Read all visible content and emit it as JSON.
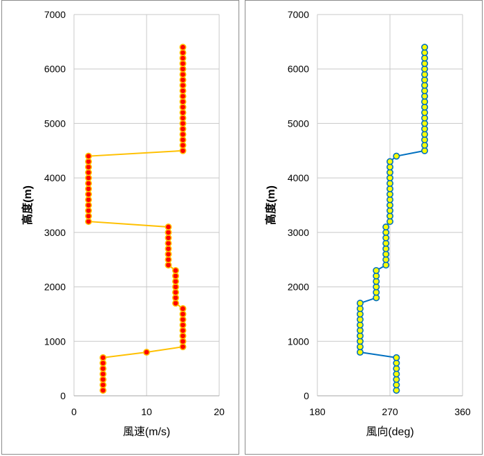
{
  "chart_data": [
    {
      "type": "line",
      "xlabel": "風速(m/s)",
      "ylabel": "高度(m)",
      "xlim": [
        0,
        20
      ],
      "ylim": [
        0,
        7000
      ],
      "xticks": [
        0,
        10,
        20
      ],
      "yticks": [
        0,
        1000,
        2000,
        3000,
        4000,
        5000,
        6000,
        7000
      ],
      "grid": true,
      "line_color": "#FFC000",
      "marker_fill": "#FF0000",
      "marker_edge": "#FFC000",
      "points": [
        {
          "x": 4,
          "y": 100
        },
        {
          "x": 4,
          "y": 200
        },
        {
          "x": 4,
          "y": 300
        },
        {
          "x": 4,
          "y": 400
        },
        {
          "x": 4,
          "y": 500
        },
        {
          "x": 4,
          "y": 600
        },
        {
          "x": 4,
          "y": 700
        },
        {
          "x": 10,
          "y": 800
        },
        {
          "x": 15,
          "y": 900
        },
        {
          "x": 15,
          "y": 1000
        },
        {
          "x": 15,
          "y": 1100
        },
        {
          "x": 15,
          "y": 1200
        },
        {
          "x": 15,
          "y": 1300
        },
        {
          "x": 15,
          "y": 1400
        },
        {
          "x": 15,
          "y": 1500
        },
        {
          "x": 15,
          "y": 1600
        },
        {
          "x": 14,
          "y": 1700
        },
        {
          "x": 14,
          "y": 1800
        },
        {
          "x": 14,
          "y": 1900
        },
        {
          "x": 14,
          "y": 2000
        },
        {
          "x": 14,
          "y": 2100
        },
        {
          "x": 14,
          "y": 2200
        },
        {
          "x": 14,
          "y": 2300
        },
        {
          "x": 13,
          "y": 2400
        },
        {
          "x": 13,
          "y": 2500
        },
        {
          "x": 13,
          "y": 2600
        },
        {
          "x": 13,
          "y": 2700
        },
        {
          "x": 13,
          "y": 2800
        },
        {
          "x": 13,
          "y": 2900
        },
        {
          "x": 13,
          "y": 3000
        },
        {
          "x": 13,
          "y": 3100
        },
        {
          "x": 2,
          "y": 3200
        },
        {
          "x": 2,
          "y": 3300
        },
        {
          "x": 2,
          "y": 3400
        },
        {
          "x": 2,
          "y": 3500
        },
        {
          "x": 2,
          "y": 3600
        },
        {
          "x": 2,
          "y": 3700
        },
        {
          "x": 2,
          "y": 3800
        },
        {
          "x": 2,
          "y": 3900
        },
        {
          "x": 2,
          "y": 4000
        },
        {
          "x": 2,
          "y": 4100
        },
        {
          "x": 2,
          "y": 4200
        },
        {
          "x": 2,
          "y": 4300
        },
        {
          "x": 2,
          "y": 4400
        },
        {
          "x": 15,
          "y": 4500
        },
        {
          "x": 15,
          "y": 4600
        },
        {
          "x": 15,
          "y": 4700
        },
        {
          "x": 15,
          "y": 4800
        },
        {
          "x": 15,
          "y": 4900
        },
        {
          "x": 15,
          "y": 5000
        },
        {
          "x": 15,
          "y": 5100
        },
        {
          "x": 15,
          "y": 5200
        },
        {
          "x": 15,
          "y": 5300
        },
        {
          "x": 15,
          "y": 5400
        },
        {
          "x": 15,
          "y": 5500
        },
        {
          "x": 15,
          "y": 5600
        },
        {
          "x": 15,
          "y": 5700
        },
        {
          "x": 15,
          "y": 5800
        },
        {
          "x": 15,
          "y": 5900
        },
        {
          "x": 15,
          "y": 6000
        },
        {
          "x": 15,
          "y": 6100
        },
        {
          "x": 15,
          "y": 6200
        },
        {
          "x": 15,
          "y": 6300
        },
        {
          "x": 15,
          "y": 6400
        }
      ]
    },
    {
      "type": "line",
      "xlabel": "風向(deg)",
      "ylabel": "高度(m)",
      "xlim": [
        180,
        360
      ],
      "ylim": [
        0,
        7000
      ],
      "xticks": [
        180,
        270,
        360
      ],
      "yticks": [
        0,
        1000,
        2000,
        3000,
        4000,
        5000,
        6000,
        7000
      ],
      "grid": true,
      "line_color": "#0070C0",
      "marker_fill": "#FFFF00",
      "marker_edge": "#0070C0",
      "points": [
        {
          "x": 278,
          "y": 100
        },
        {
          "x": 278,
          "y": 200
        },
        {
          "x": 278,
          "y": 300
        },
        {
          "x": 278,
          "y": 400
        },
        {
          "x": 278,
          "y": 500
        },
        {
          "x": 278,
          "y": 600
        },
        {
          "x": 278,
          "y": 700
        },
        {
          "x": 233,
          "y": 800
        },
        {
          "x": 233,
          "y": 900
        },
        {
          "x": 233,
          "y": 1000
        },
        {
          "x": 233,
          "y": 1100
        },
        {
          "x": 233,
          "y": 1200
        },
        {
          "x": 233,
          "y": 1300
        },
        {
          "x": 233,
          "y": 1400
        },
        {
          "x": 233,
          "y": 1500
        },
        {
          "x": 233,
          "y": 1600
        },
        {
          "x": 233,
          "y": 1700
        },
        {
          "x": 253,
          "y": 1800
        },
        {
          "x": 253,
          "y": 1900
        },
        {
          "x": 253,
          "y": 2000
        },
        {
          "x": 253,
          "y": 2100
        },
        {
          "x": 253,
          "y": 2200
        },
        {
          "x": 253,
          "y": 2300
        },
        {
          "x": 265,
          "y": 2400
        },
        {
          "x": 265,
          "y": 2500
        },
        {
          "x": 265,
          "y": 2600
        },
        {
          "x": 265,
          "y": 2700
        },
        {
          "x": 265,
          "y": 2800
        },
        {
          "x": 265,
          "y": 2900
        },
        {
          "x": 265,
          "y": 3000
        },
        {
          "x": 265,
          "y": 3100
        },
        {
          "x": 270,
          "y": 3200
        },
        {
          "x": 270,
          "y": 3300
        },
        {
          "x": 270,
          "y": 3400
        },
        {
          "x": 270,
          "y": 3500
        },
        {
          "x": 270,
          "y": 3600
        },
        {
          "x": 270,
          "y": 3700
        },
        {
          "x": 270,
          "y": 3800
        },
        {
          "x": 270,
          "y": 3900
        },
        {
          "x": 270,
          "y": 4000
        },
        {
          "x": 270,
          "y": 4100
        },
        {
          "x": 270,
          "y": 4200
        },
        {
          "x": 270,
          "y": 4300
        },
        {
          "x": 278,
          "y": 4400
        },
        {
          "x": 313,
          "y": 4500
        },
        {
          "x": 313,
          "y": 4600
        },
        {
          "x": 313,
          "y": 4700
        },
        {
          "x": 313,
          "y": 4800
        },
        {
          "x": 313,
          "y": 4900
        },
        {
          "x": 313,
          "y": 5000
        },
        {
          "x": 313,
          "y": 5100
        },
        {
          "x": 313,
          "y": 5200
        },
        {
          "x": 313,
          "y": 5300
        },
        {
          "x": 313,
          "y": 5400
        },
        {
          "x": 313,
          "y": 5500
        },
        {
          "x": 313,
          "y": 5600
        },
        {
          "x": 313,
          "y": 5700
        },
        {
          "x": 313,
          "y": 5800
        },
        {
          "x": 313,
          "y": 5900
        },
        {
          "x": 313,
          "y": 6000
        },
        {
          "x": 313,
          "y": 6100
        },
        {
          "x": 313,
          "y": 6200
        },
        {
          "x": 313,
          "y": 6300
        },
        {
          "x": 313,
          "y": 6400
        }
      ]
    }
  ]
}
